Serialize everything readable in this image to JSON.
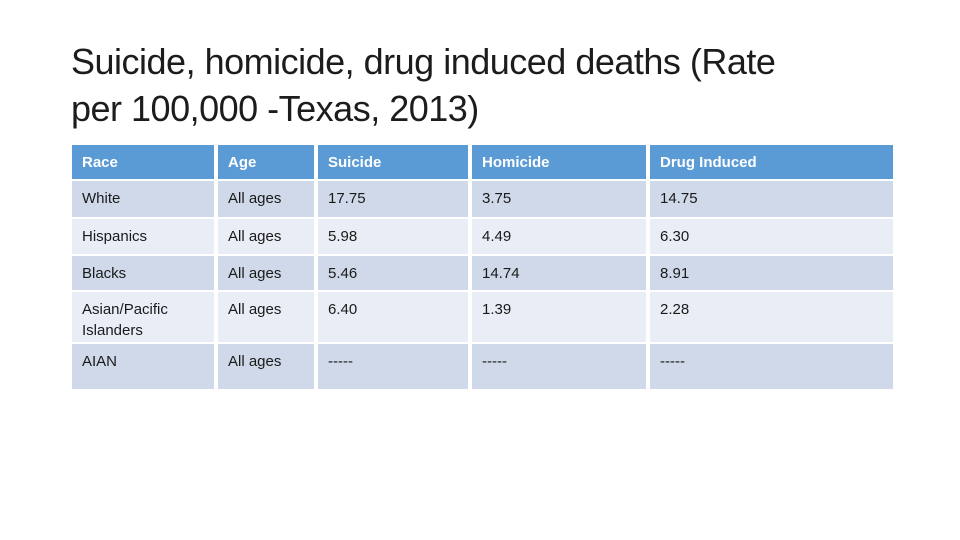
{
  "slide": {
    "title_line1": "Suicide, homicide, drug induced deaths (Rate",
    "title_line2": "per 100,000 -Texas, 2013)"
  },
  "table": {
    "headers": [
      "Race",
      "Age",
      "Suicide",
      "Homicide",
      "Drug Induced"
    ],
    "rows": [
      [
        "White",
        "All ages",
        "17.75",
        "3.75",
        "14.75"
      ],
      [
        "Hispanics",
        "All ages",
        "5.98",
        "4.49",
        "6.30"
      ],
      [
        "Blacks",
        "All ages",
        "5.46",
        "14.74",
        "8.91"
      ],
      [
        "Asian/Pacific Islanders",
        "All ages",
        "6.40",
        "1.39",
        "2.28"
      ],
      [
        "AIAN",
        "All ages",
        "-----",
        "-----",
        "-----"
      ]
    ],
    "colors": {
      "header_bg": "#5B9BD5",
      "header_text": "#FFFFFF",
      "band_dark_bg": "#CFD9E9",
      "band_light_bg": "#E9EDF5",
      "cell_text": "#1A1A1A"
    }
  }
}
